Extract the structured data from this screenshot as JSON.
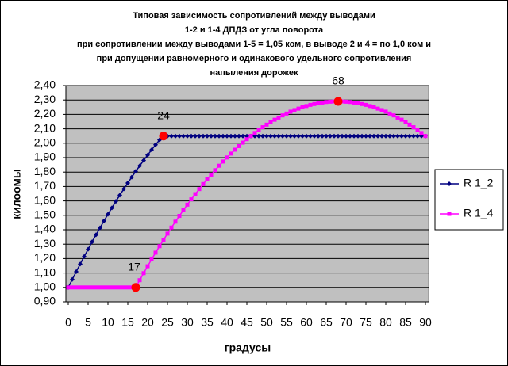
{
  "chart_data": {
    "type": "line",
    "title": [
      "Типовая зависимость сопротивлений  между выводами",
      "1-2 и 1-4 ДПДЗ от угла поворота",
      "при сопротивлении между выводами 1-5 = 1,05 ком, в выводе 2 и 4 = по 1,0 ком и",
      "при допущении равномерного и одинакового удельного сопротивления",
      "напыления дорожек"
    ],
    "x_label": "градусы",
    "y_label": "килоомы",
    "x": [
      0,
      1,
      2,
      3,
      4,
      5,
      6,
      7,
      8,
      9,
      10,
      11,
      12,
      13,
      14,
      15,
      16,
      17,
      18,
      19,
      20,
      21,
      22,
      23,
      24,
      25,
      26,
      27,
      28,
      29,
      30,
      31,
      32,
      33,
      34,
      35,
      36,
      37,
      38,
      39,
      40,
      41,
      42,
      43,
      44,
      45,
      46,
      47,
      48,
      49,
      50,
      51,
      52,
      53,
      54,
      55,
      56,
      57,
      58,
      59,
      60,
      61,
      62,
      63,
      64,
      65,
      66,
      67,
      68,
      69,
      70,
      71,
      72,
      73,
      74,
      75,
      76,
      77,
      78,
      79,
      80,
      81,
      82,
      83,
      84,
      85,
      86,
      87,
      88,
      89,
      90
    ],
    "series": [
      {
        "name": "R 1_2",
        "color": "#000080",
        "marker": "diamond",
        "values": [
          1.0,
          1.055,
          1.109,
          1.162,
          1.214,
          1.265,
          1.316,
          1.365,
          1.413,
          1.461,
          1.507,
          1.552,
          1.597,
          1.64,
          1.683,
          1.724,
          1.765,
          1.805,
          1.843,
          1.881,
          1.918,
          1.954,
          1.989,
          2.023,
          2.05,
          2.05,
          2.05,
          2.05,
          2.05,
          2.05,
          2.05,
          2.05,
          2.05,
          2.05,
          2.05,
          2.05,
          2.05,
          2.05,
          2.05,
          2.05,
          2.05,
          2.05,
          2.05,
          2.05,
          2.05,
          2.05,
          2.05,
          2.05,
          2.05,
          2.05,
          2.05,
          2.05,
          2.05,
          2.05,
          2.05,
          2.05,
          2.05,
          2.05,
          2.05,
          2.05,
          2.05,
          2.05,
          2.05,
          2.05,
          2.05,
          2.05,
          2.05,
          2.05,
          2.05,
          2.05,
          2.05,
          2.05,
          2.05,
          2.05,
          2.05,
          2.05,
          2.05,
          2.05,
          2.05,
          2.05,
          2.05,
          2.05,
          2.05,
          2.05,
          2.05,
          2.05,
          2.05,
          2.05,
          2.05,
          2.05,
          2.05
        ]
      },
      {
        "name": "R 1_4",
        "color": "#FF00FF",
        "marker": "square",
        "values": [
          1.0,
          1.0,
          1.0,
          1.0,
          1.0,
          1.0,
          1.0,
          1.0,
          1.0,
          1.0,
          1.0,
          1.0,
          1.0,
          1.0,
          1.0,
          1.0,
          1.0,
          1.0,
          1.05,
          1.099,
          1.147,
          1.194,
          1.241,
          1.286,
          1.33,
          1.373,
          1.415,
          1.456,
          1.496,
          1.536,
          1.574,
          1.611,
          1.647,
          1.682,
          1.717,
          1.75,
          1.782,
          1.813,
          1.844,
          1.873,
          1.901,
          1.928,
          1.955,
          1.98,
          2.004,
          2.028,
          2.05,
          2.071,
          2.092,
          2.111,
          2.129,
          2.147,
          2.163,
          2.178,
          2.193,
          2.206,
          2.219,
          2.23,
          2.24,
          2.25,
          2.258,
          2.266,
          2.272,
          2.278,
          2.282,
          2.286,
          2.288,
          2.29,
          2.29,
          2.29,
          2.288,
          2.286,
          2.282,
          2.278,
          2.272,
          2.266,
          2.258,
          2.25,
          2.24,
          2.23,
          2.219,
          2.206,
          2.193,
          2.178,
          2.163,
          2.147,
          2.129,
          2.111,
          2.092,
          2.071,
          2.05
        ]
      }
    ],
    "annotations": [
      {
        "text": "24",
        "x": 24,
        "y": 2.05
      },
      {
        "text": "17",
        "x": 17,
        "y": 1.0
      },
      {
        "text": "68",
        "x": 68,
        "y": 2.29
      }
    ],
    "annotation_color": "#FF0000",
    "xlim": [
      0,
      90
    ],
    "xticks": [
      0,
      5,
      10,
      15,
      20,
      25,
      30,
      35,
      40,
      45,
      50,
      55,
      60,
      65,
      70,
      75,
      80,
      85,
      90
    ],
    "ylim": [
      0.9,
      2.4
    ],
    "yticks": [
      {
        "value": 0.9,
        "label": "0,90"
      },
      {
        "value": 1.0,
        "label": "1,00"
      },
      {
        "value": 1.1,
        "label": "1,10"
      },
      {
        "value": 1.2,
        "label": "1,20"
      },
      {
        "value": 1.3,
        "label": "1,30"
      },
      {
        "value": 1.4,
        "label": "1,40"
      },
      {
        "value": 1.5,
        "label": "1,50"
      },
      {
        "value": 1.6,
        "label": "1,60"
      },
      {
        "value": 1.7,
        "label": "1,70"
      },
      {
        "value": 1.8,
        "label": "1,80"
      },
      {
        "value": 1.9,
        "label": "1,90"
      },
      {
        "value": 2.0,
        "label": "2,00"
      },
      {
        "value": 2.1,
        "label": "2,10"
      },
      {
        "value": 2.2,
        "label": "2,20"
      },
      {
        "value": 2.3,
        "label": "2,30"
      },
      {
        "value": 2.4,
        "label": "2,40"
      }
    ],
    "grid": true,
    "plot_background": "#C0C0C0",
    "legend": "right"
  }
}
